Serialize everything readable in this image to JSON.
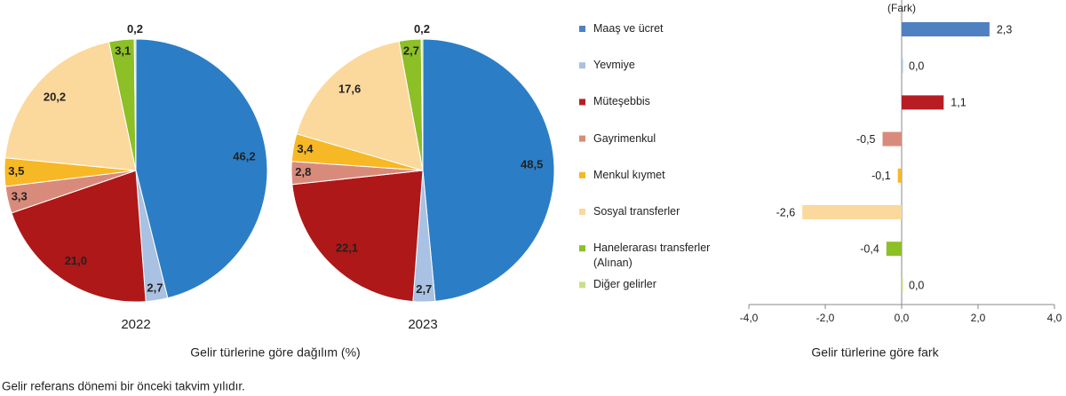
{
  "chart_data": [
    {
      "type": "pie",
      "xlabel": "2022",
      "categories": [
        "Maaş ve ücret",
        "Yevmiye",
        "Müteşebbis",
        "Gayrimenkul",
        "Menkul kıymet",
        "Sosyal transferler",
        "Hanelerarası transferler (Alınan)",
        "Diğer gelirler"
      ],
      "values": [
        46.2,
        2.7,
        21.0,
        3.3,
        3.5,
        20.2,
        3.1,
        0.2
      ],
      "value_labels": [
        "46,2",
        "2,7",
        "21,0",
        "3,3",
        "3,5",
        "20,2",
        "3,1",
        "0,2"
      ],
      "colors": [
        "#2b7ec6",
        "#a9c1e2",
        "#ae1818",
        "#d98b7b",
        "#f6b824",
        "#fbd89c",
        "#8dbf26",
        "#cadf8c"
      ]
    },
    {
      "type": "pie",
      "xlabel": "2023",
      "categories": [
        "Maaş ve ücret",
        "Yevmiye",
        "Müteşebbis",
        "Gayrimenkul",
        "Menkul kıymet",
        "Sosyal transferler",
        "Hanelerarası transferler (Alınan)",
        "Diğer gelirler"
      ],
      "values": [
        48.5,
        2.7,
        22.1,
        2.8,
        3.4,
        17.6,
        2.7,
        0.2
      ],
      "value_labels": [
        "48,5",
        "2,7",
        "22,1",
        "2,8",
        "3,4",
        "17,6",
        "2,7",
        "0,2"
      ],
      "colors": [
        "#2b7ec6",
        "#a9c1e2",
        "#ae1818",
        "#d98b7b",
        "#f6b824",
        "#fbd89c",
        "#8dbf26",
        "#cadf8c"
      ]
    },
    {
      "type": "bar",
      "orientation": "horizontal",
      "xlabel": "Gelir türlerine göre fark",
      "value_axis_label": "(Fark)",
      "categories": [
        "Maaş ve ücret",
        "Yevmiye",
        "Müteşebbis",
        "Gayrimenkul",
        "Menkul kıymet",
        "Sosyal transferler",
        "Hanelerarası transferler (Alınan)",
        "Diğer gelirler"
      ],
      "values": [
        2.3,
        0.0,
        1.1,
        -0.5,
        -0.1,
        -2.6,
        -0.4,
        0.0
      ],
      "value_labels": [
        "2,3",
        "0,0",
        "1,1",
        "-0,5",
        "-0,1",
        "-2,6",
        "-0,4",
        "0,0"
      ],
      "colors": [
        "#4f80c1",
        "#a9c1e2",
        "#b81d24",
        "#d98b7b",
        "#f6b824",
        "#fbd89c",
        "#8dbf26",
        "#cadf8c"
      ],
      "legend": "left",
      "xlim": [
        -4,
        4
      ],
      "xticks": [
        {
          "value": -4,
          "label": "-4,0"
        },
        {
          "value": -2,
          "label": "-2,0"
        },
        {
          "value": 0,
          "label": "0,0"
        },
        {
          "value": 2,
          "label": "2,0"
        },
        {
          "value": 4,
          "label": "4,0"
        }
      ]
    }
  ],
  "pie_caption": "Gelir türlerine göre dağılım (%)",
  "footnote": "Gelir referans dönemi bir önceki takvim yılıdır."
}
